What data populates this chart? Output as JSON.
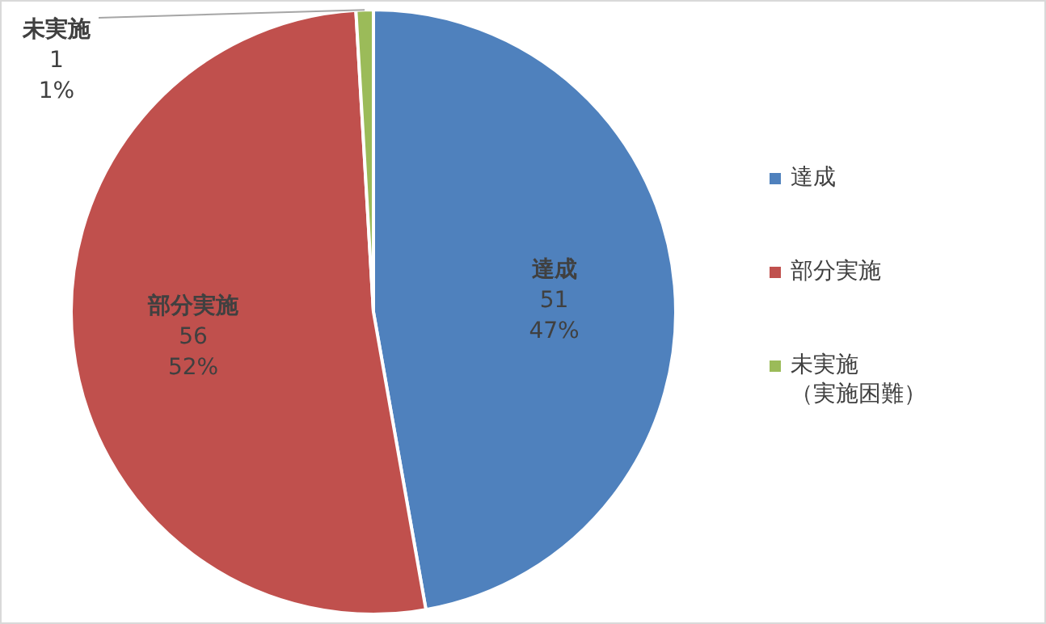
{
  "chart_data": {
    "type": "pie",
    "categories": [
      "達成",
      "部分実施",
      "未実施（実施困難）"
    ],
    "values": [
      51,
      56,
      1
    ],
    "colors": [
      "#4f81bd",
      "#c0504d",
      "#9bbb59"
    ],
    "value_labels": [
      "達成\n51\n47%",
      "部分実施\n56\n52%",
      "未実施\n1\n1%"
    ],
    "legend": "right"
  }
}
